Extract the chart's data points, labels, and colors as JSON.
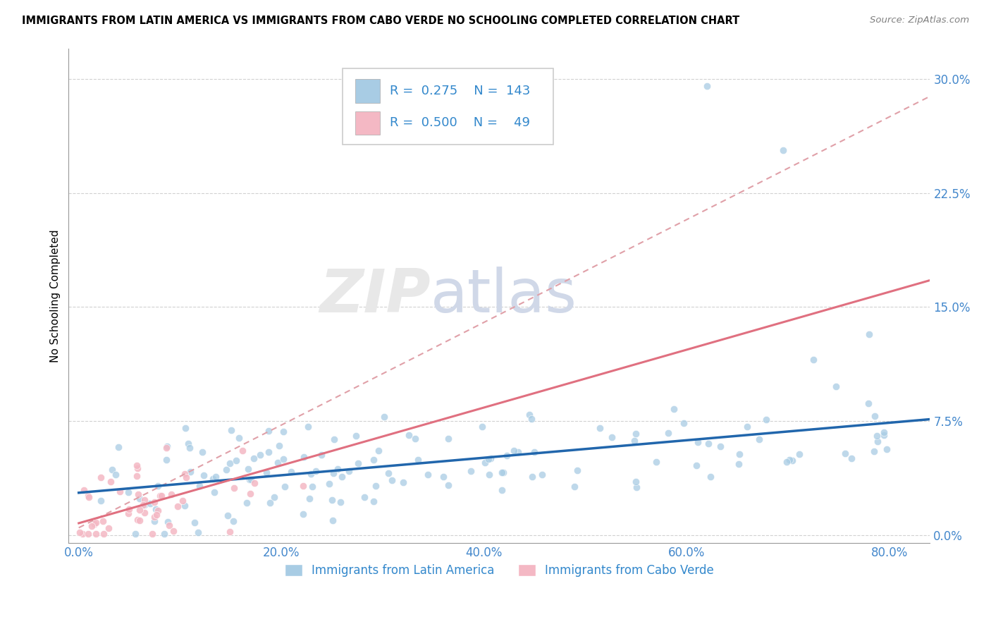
{
  "title": "IMMIGRANTS FROM LATIN AMERICA VS IMMIGRANTS FROM CABO VERDE NO SCHOOLING COMPLETED CORRELATION CHART",
  "source": "Source: ZipAtlas.com",
  "xlabel_ticks": [
    "0.0%",
    "20.0%",
    "40.0%",
    "60.0%",
    "80.0%"
  ],
  "xlabel_tick_vals": [
    0.0,
    0.2,
    0.4,
    0.6,
    0.8
  ],
  "ylabel": "No Schooling Completed",
  "ylabel_ticks": [
    "0.0%",
    "7.5%",
    "15.0%",
    "22.5%",
    "30.0%"
  ],
  "ylabel_tick_vals": [
    0.0,
    0.075,
    0.15,
    0.225,
    0.3
  ],
  "xlim": [
    -0.01,
    0.84
  ],
  "ylim": [
    -0.005,
    0.32
  ],
  "blue_R": 0.275,
  "blue_N": 143,
  "pink_R": 0.5,
  "pink_N": 49,
  "blue_color": "#a8cce4",
  "pink_color": "#f4b8c4",
  "blue_line_color": "#2166ac",
  "pink_line_color": "#e07080",
  "pink_dash_color": "#e0a0a8",
  "grid_color": "#cccccc",
  "watermark_zip": "ZIP",
  "watermark_atlas": "atlas",
  "legend_label_blue": "Immigrants from Latin America",
  "legend_label_pink": "Immigrants from Cabo Verde"
}
